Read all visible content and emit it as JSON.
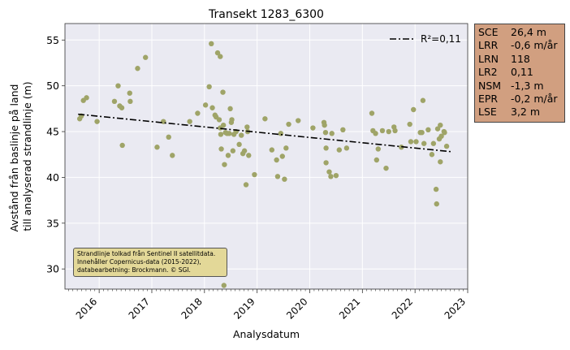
{
  "chart_data": {
    "type": "scatter",
    "title": "Transekt 1283_6300",
    "xlabel": "Analysdatum",
    "ylabel": [
      "Avstånd från baslinje på land",
      "till analyserad strandlinje (m)"
    ],
    "x_ticks": [
      "2016",
      "2017",
      "2018",
      "2019",
      "2020",
      "2021",
      "2022",
      "2023"
    ],
    "y_ticks": [
      30,
      35,
      40,
      45,
      50,
      55
    ],
    "xlim": [
      2015.35,
      2023.0
    ],
    "ylim": [
      27.8,
      56.8
    ],
    "grid": true,
    "legend": {
      "position": "top-right",
      "label": "R²=0,11"
    },
    "trend_line": {
      "x": [
        2015.6,
        2022.7
      ],
      "y": [
        46.9,
        42.8
      ],
      "color": "#000000",
      "style": "dash-dot"
    },
    "point_color": "#9fa468",
    "points": [
      {
        "x": 2015.63,
        "y": 46.4
      },
      {
        "x": 2015.66,
        "y": 46.7
      },
      {
        "x": 2015.7,
        "y": 48.4
      },
      {
        "x": 2015.76,
        "y": 48.7
      },
      {
        "x": 2015.96,
        "y": 46.1
      },
      {
        "x": 2016.29,
        "y": 48.3
      },
      {
        "x": 2016.36,
        "y": 50.0
      },
      {
        "x": 2016.39,
        "y": 47.8
      },
      {
        "x": 2016.43,
        "y": 47.6
      },
      {
        "x": 2016.44,
        "y": 43.5
      },
      {
        "x": 2016.58,
        "y": 49.2
      },
      {
        "x": 2016.59,
        "y": 48.3
      },
      {
        "x": 2016.73,
        "y": 51.9
      },
      {
        "x": 2016.88,
        "y": 53.1
      },
      {
        "x": 2017.1,
        "y": 43.3
      },
      {
        "x": 2017.22,
        "y": 46.1
      },
      {
        "x": 2017.32,
        "y": 44.4
      },
      {
        "x": 2017.39,
        "y": 42.4
      },
      {
        "x": 2017.72,
        "y": 46.1
      },
      {
        "x": 2017.87,
        "y": 47.0
      },
      {
        "x": 2018.02,
        "y": 47.9
      },
      {
        "x": 2018.09,
        "y": 49.9
      },
      {
        "x": 2018.13,
        "y": 54.6
      },
      {
        "x": 2018.15,
        "y": 47.6
      },
      {
        "x": 2018.2,
        "y": 46.8
      },
      {
        "x": 2018.22,
        "y": 46.6
      },
      {
        "x": 2018.25,
        "y": 53.6
      },
      {
        "x": 2018.28,
        "y": 46.3
      },
      {
        "x": 2018.3,
        "y": 53.2
      },
      {
        "x": 2018.3,
        "y": 45.4
      },
      {
        "x": 2018.31,
        "y": 44.7
      },
      {
        "x": 2018.32,
        "y": 43.1
      },
      {
        "x": 2018.35,
        "y": 49.3
      },
      {
        "x": 2018.36,
        "y": 45.7
      },
      {
        "x": 2018.37,
        "y": 28.2
      },
      {
        "x": 2018.38,
        "y": 41.4
      },
      {
        "x": 2018.4,
        "y": 44.9
      },
      {
        "x": 2018.43,
        "y": 44.8
      },
      {
        "x": 2018.45,
        "y": 42.4
      },
      {
        "x": 2018.47,
        "y": 44.8
      },
      {
        "x": 2018.49,
        "y": 47.5
      },
      {
        "x": 2018.51,
        "y": 46.0
      },
      {
        "x": 2018.52,
        "y": 46.3
      },
      {
        "x": 2018.54,
        "y": 42.9
      },
      {
        "x": 2018.56,
        "y": 44.7
      },
      {
        "x": 2018.6,
        "y": 45.0
      },
      {
        "x": 2018.66,
        "y": 43.6
      },
      {
        "x": 2018.7,
        "y": 44.6
      },
      {
        "x": 2018.73,
        "y": 42.6
      },
      {
        "x": 2018.76,
        "y": 42.9
      },
      {
        "x": 2018.79,
        "y": 39.2
      },
      {
        "x": 2018.81,
        "y": 45.5
      },
      {
        "x": 2018.82,
        "y": 45.0
      },
      {
        "x": 2018.84,
        "y": 42.4
      },
      {
        "x": 2018.95,
        "y": 40.3
      },
      {
        "x": 2019.15,
        "y": 46.4
      },
      {
        "x": 2019.28,
        "y": 43.0
      },
      {
        "x": 2019.37,
        "y": 41.9
      },
      {
        "x": 2019.39,
        "y": 40.1
      },
      {
        "x": 2019.45,
        "y": 44.8
      },
      {
        "x": 2019.48,
        "y": 42.3
      },
      {
        "x": 2019.52,
        "y": 39.8
      },
      {
        "x": 2019.55,
        "y": 43.2
      },
      {
        "x": 2019.6,
        "y": 45.8
      },
      {
        "x": 2019.78,
        "y": 46.2
      },
      {
        "x": 2020.06,
        "y": 45.4
      },
      {
        "x": 2020.27,
        "y": 46.0
      },
      {
        "x": 2020.28,
        "y": 45.7
      },
      {
        "x": 2020.3,
        "y": 44.9
      },
      {
        "x": 2020.31,
        "y": 43.2
      },
      {
        "x": 2020.31,
        "y": 41.6
      },
      {
        "x": 2020.37,
        "y": 40.6
      },
      {
        "x": 2020.4,
        "y": 40.1
      },
      {
        "x": 2020.42,
        "y": 44.8
      },
      {
        "x": 2020.5,
        "y": 40.2
      },
      {
        "x": 2020.56,
        "y": 43.0
      },
      {
        "x": 2020.63,
        "y": 45.2
      },
      {
        "x": 2020.7,
        "y": 43.2
      },
      {
        "x": 2021.18,
        "y": 47.0
      },
      {
        "x": 2021.2,
        "y": 45.1
      },
      {
        "x": 2021.25,
        "y": 44.8
      },
      {
        "x": 2021.27,
        "y": 41.9
      },
      {
        "x": 2021.3,
        "y": 43.1
      },
      {
        "x": 2021.38,
        "y": 45.1
      },
      {
        "x": 2021.45,
        "y": 41.0
      },
      {
        "x": 2021.5,
        "y": 45.0
      },
      {
        "x": 2021.6,
        "y": 45.5
      },
      {
        "x": 2021.62,
        "y": 45.1
      },
      {
        "x": 2021.74,
        "y": 43.3
      },
      {
        "x": 2021.9,
        "y": 45.8
      },
      {
        "x": 2021.92,
        "y": 43.9
      },
      {
        "x": 2021.97,
        "y": 47.4
      },
      {
        "x": 2022.02,
        "y": 43.9
      },
      {
        "x": 2022.1,
        "y": 44.9
      },
      {
        "x": 2022.13,
        "y": 44.9
      },
      {
        "x": 2022.15,
        "y": 48.4
      },
      {
        "x": 2022.17,
        "y": 43.7
      },
      {
        "x": 2022.25,
        "y": 45.2
      },
      {
        "x": 2022.32,
        "y": 42.5
      },
      {
        "x": 2022.35,
        "y": 43.7
      },
      {
        "x": 2022.4,
        "y": 38.7
      },
      {
        "x": 2022.41,
        "y": 37.1
      },
      {
        "x": 2022.43,
        "y": 45.3
      },
      {
        "x": 2022.46,
        "y": 44.2
      },
      {
        "x": 2022.48,
        "y": 45.7
      },
      {
        "x": 2022.48,
        "y": 41.7
      },
      {
        "x": 2022.5,
        "y": 44.5
      },
      {
        "x": 2022.55,
        "y": 45.0
      },
      {
        "x": 2022.56,
        "y": 44.9
      },
      {
        "x": 2022.6,
        "y": 43.4
      }
    ]
  },
  "stats": [
    {
      "key": "SCE",
      "value": "26,4 m"
    },
    {
      "key": "LRR",
      "value": "-0,6 m/år"
    },
    {
      "key": "LRN",
      "value": "118"
    },
    {
      "key": "LR2",
      "value": "0,11"
    },
    {
      "key": "NSM",
      "value": "-1,3 m"
    },
    {
      "key": "EPR",
      "value": "-0,2 m/år"
    },
    {
      "key": "LSE",
      "value": "3,2 m"
    }
  ],
  "note": {
    "line1": "Strandlinje tolkad från Sentinel II satellitdata.",
    "line2": "Innehåller Copernicus-data (2015-2022),",
    "line3": "databearbetning: Brockmann. © SGI."
  }
}
